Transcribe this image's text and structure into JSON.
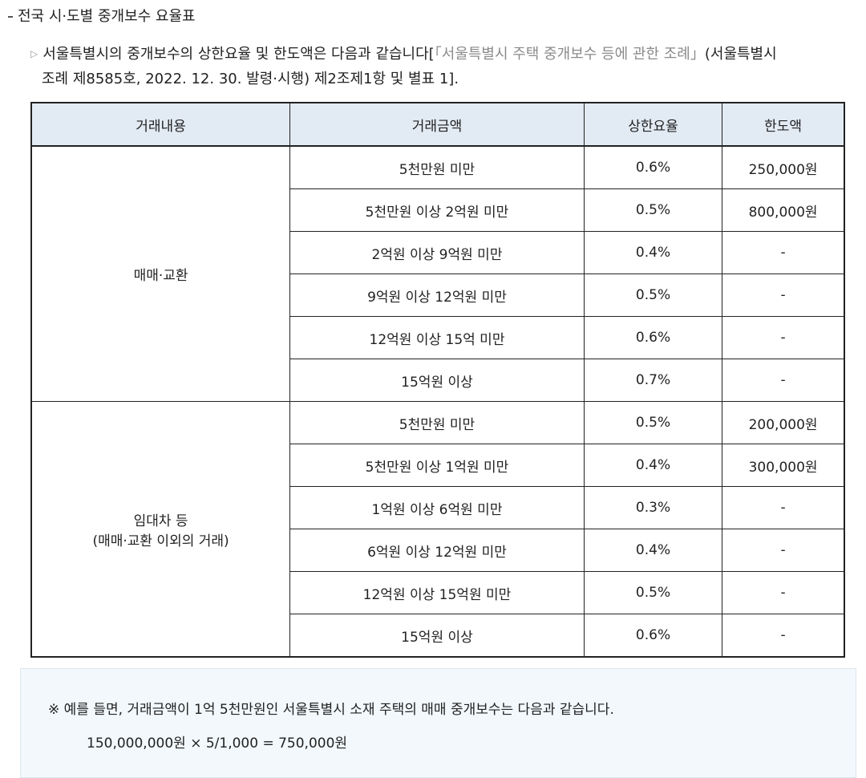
{
  "section_title": "전국 시·도별 중개보수 요율표",
  "intro": {
    "text_before": "서울특별시의 중개보수의 상한요율 및 한도액은 다음과 같습니다[",
    "ref_link": "「서울특별시 주택 중개보수 등에 관한 조례」",
    "text_after_line1": "(서울특별시",
    "line2": "조례 제8585호, 2022. 12. 30. 발령·시행) 제2조제1항 및 별표 1]."
  },
  "table": {
    "headers": [
      "거래내용",
      "거래금액",
      "상한요율",
      "한도액"
    ],
    "groups": [
      {
        "label_line1": "매매·교환",
        "label_line2": "",
        "rows": [
          [
            "5천만원 미만",
            "0.6%",
            "250,000원"
          ],
          [
            "5천만원 이상 2억원 미만",
            "0.5%",
            "800,000원"
          ],
          [
            "2억원 이상 9억원 미만",
            "0.4%",
            "-"
          ],
          [
            "9억원 이상 12억원 미만",
            "0.5%",
            "-"
          ],
          [
            "12억원 이상 15억 미만",
            "0.6%",
            "-"
          ],
          [
            "15억원 이상",
            "0.7%",
            "-"
          ]
        ]
      },
      {
        "label_line1": "임대차 등",
        "label_line2": "(매매·교환 이외의 거래)",
        "rows": [
          [
            "5천만원 미만",
            "0.5%",
            "200,000원"
          ],
          [
            "5천만원 이상 1억원 미만",
            "0.4%",
            "300,000원"
          ],
          [
            "1억원 이상 6억원 미만",
            "0.3%",
            "-"
          ],
          [
            "6억원 이상 12억원 미만",
            "0.4%",
            "-"
          ],
          [
            "12억원 이상 15억원 미만",
            "0.5%",
            "-"
          ],
          [
            "15억원 이상",
            "0.6%",
            "-"
          ]
        ]
      }
    ]
  },
  "example": {
    "note": "※ 예를 들면, 거래금액이 1억 5천만원인 서울특별시 소재 주택의 매매 중개보수는 다음과 같습니다.",
    "formula": "150,000,000원 × 5/1,000 = 750,000원"
  }
}
